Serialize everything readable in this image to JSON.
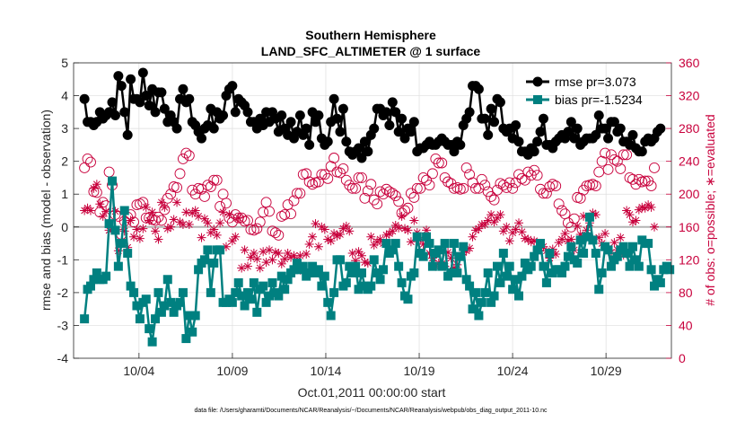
{
  "chart_data": {
    "type": "line",
    "title": "Southern Hemisphere",
    "subtitle": "LAND_SFC_ALTIMETER @ 1 surface",
    "xlabel": "Oct.01,2011 00:00:00 start",
    "ylabel": "rmse and bias (model - observation)",
    "ylabel_right": "# of obs: o=possible; ∗=evaluated",
    "footer": "data file: /Users/gharamti/Documents/NCAR/Reanalysis/~/Documents/NCAR/Reanalysis/webpub/obs_diag_output_2011-10.nc",
    "xlim": [
      0.5,
      32.5
    ],
    "ylim": [
      -4,
      5
    ],
    "ylim_right": [
      0,
      360
    ],
    "x_ticks": [
      4,
      9,
      14,
      19,
      24,
      29
    ],
    "x_tick_labels": [
      "10/04",
      "10/09",
      "10/14",
      "10/19",
      "10/24",
      "10/29"
    ],
    "y_ticks": [
      -4,
      -3,
      -2,
      -1,
      0,
      1,
      2,
      3,
      4,
      5
    ],
    "y_tick_labels": [
      "-4",
      "-3",
      "-2",
      "-1",
      "0",
      "1",
      "2",
      "3",
      "4",
      "5"
    ],
    "y_right_ticks": [
      0,
      40,
      80,
      120,
      160,
      200,
      240,
      280,
      320,
      360
    ],
    "y_right_tick_labels": [
      "0",
      "40",
      "80",
      "120",
      "160",
      "200",
      "240",
      "280",
      "320",
      "360"
    ],
    "legend_position": "top-right",
    "colors": {
      "rmse": "#000000",
      "bias": "#008080",
      "obs": "#c8003c",
      "zero_line": "#b4b4b4"
    },
    "series": [
      {
        "name": "rmse pr=3.073",
        "key": "rmse",
        "values": [
          3.9,
          3.2,
          3.2,
          3.1,
          3.2,
          3.5,
          3.3,
          3.4,
          3.5,
          3.8,
          3.4,
          4.6,
          4.3,
          3.5,
          2.8,
          4.5,
          3.9,
          3.9,
          3.8,
          4.7,
          4.0,
          3.7,
          4.2,
          3.5,
          4.1,
          4.1,
          3.6,
          3.2,
          3.4,
          3.2,
          3.0,
          3.9,
          4.2,
          3.8,
          3.9,
          3.2,
          3.1,
          2.9,
          2.7,
          3.0,
          3.1,
          3.6,
          3.0,
          3.5,
          3.3,
          3.4,
          4.0,
          4.2,
          4.3,
          3.5,
          3.9,
          3.8,
          3.7,
          3.5,
          3.2,
          3.2,
          3.0,
          3.3,
          3.1,
          3.5,
          3.2,
          3.5,
          3.3,
          2.9,
          3.4,
          3.0,
          2.8,
          3.2,
          2.7,
          2.9,
          3.4,
          2.8,
          3.0,
          2.5,
          3.5,
          3.2,
          3.4,
          2.7,
          2.5,
          2.6,
          3.2,
          3.9,
          3.3,
          2.9,
          3.6,
          2.6,
          2.3,
          2.2,
          2.3,
          2.4,
          2.1,
          2.6,
          2.3,
          2.8,
          3.0,
          3.6,
          3.6,
          3.4,
          3.5,
          3.1,
          3.8,
          3.5,
          2.9,
          3.3,
          2.7,
          3.0,
          2.9,
          3.2,
          2.3,
          2.4,
          2.4,
          2.5,
          2.6,
          2.5,
          2.5,
          2.6,
          2.7,
          2.6,
          2.5,
          2.5,
          2.3,
          2.6,
          2.5,
          3.1,
          3.3,
          3.5,
          4.3,
          4.3,
          4.2,
          3.3,
          3.3,
          2.8,
          3.6,
          3.2,
          3.9,
          3.8,
          3.0,
          2.9,
          3.0,
          2.7,
          3.1,
          2.6,
          2.3,
          2.3,
          2.2,
          2.4,
          2.3,
          2.6,
          2.9,
          3.3,
          2.5,
          2.5,
          2.4,
          2.6,
          2.7,
          2.8,
          2.7,
          2.9,
          3.2,
          2.7,
          3.0,
          2.5,
          2.6,
          2.7,
          2.7,
          2.7,
          2.8,
          3.4,
          3.0,
          3.0,
          2.7,
          3.2,
          3.2,
          2.9,
          3.0,
          2.6,
          2.6,
          2.5,
          2.8,
          2.4,
          2.3,
          2.3,
          2.6,
          2.7,
          2.6,
          2.7,
          2.9,
          3.0
        ]
      },
      {
        "name": "bias pr=-1.5234",
        "key": "bias",
        "values": [
          -2.8,
          -1.9,
          -1.8,
          -1.6,
          -1.4,
          -1.6,
          -1.6,
          -1.5,
          0.1,
          1.4,
          -0.1,
          -1.2,
          -0.5,
          0.5,
          -0.8,
          -1.8,
          -2.0,
          -2.4,
          -2.8,
          -2.3,
          -2.2,
          -3.1,
          -3.5,
          -2.8,
          -2.0,
          -2.6,
          -2.4,
          -1.6,
          -2.3,
          -2.6,
          -2.4,
          -2.3,
          -2.0,
          -3.4,
          -2.7,
          -3.2,
          -2.7,
          -1.3,
          -1.1,
          -1.0,
          -0.7,
          -2.0,
          -1.1,
          -0.7,
          -0.7,
          -2.3,
          -2.3,
          -2.2,
          -2.3,
          -2.0,
          -1.7,
          -2.1,
          -2.4,
          -2.0,
          -2.2,
          -1.7,
          -2.6,
          -1.9,
          -1.8,
          -2.3,
          -2.1,
          -1.7,
          -2.0,
          -2.1,
          -1.5,
          -1.9,
          -1.6,
          -1.4,
          -1.3,
          -1.1,
          -1.3,
          -1.2,
          -1.5,
          -1.4,
          -1.2,
          -1.4,
          -1.3,
          -1.8,
          -1.5,
          -2.3,
          -2.7,
          -2.0,
          -1.0,
          -1.0,
          -1.8,
          -1.7,
          -1.2,
          -1.4,
          -1.2,
          -1.9,
          -1.4,
          -1.8,
          -1.9,
          -1.8,
          -1.0,
          -1.4,
          -1.6,
          -1.3,
          -0.5,
          -0.8,
          -0.7,
          -0.5,
          -1.2,
          -1.7,
          -2.1,
          -2.2,
          -1.5,
          -1.4,
          -0.3,
          -0.8,
          -0.9,
          -0.3,
          -0.5,
          -1.2,
          -0.8,
          -0.7,
          -1.2,
          -0.5,
          -1.5,
          -1.4,
          -0.5,
          -1.4,
          -0.9,
          -0.6,
          -1.6,
          -1.8,
          -2.5,
          -2.0,
          -2.7,
          -2.3,
          -2.0,
          -1.4,
          -2.3,
          -2.1,
          -1.2,
          -1.7,
          -0.8,
          -1.5,
          -1.2,
          -1.9,
          -1.6,
          -2.1,
          -1.5,
          -1.1,
          -1.3,
          -1.2,
          -0.9,
          -0.7,
          -0.5,
          -1.2,
          -1.7,
          -0.8,
          -1.4,
          -1.3,
          -1.3,
          -1.4,
          -1.2,
          -0.9,
          -0.6,
          -1.0,
          -1.1,
          -0.4,
          -0.8,
          -0.3,
          0.3,
          -0.4,
          -0.8,
          -1.9,
          -1.4,
          -0.6,
          -0.7,
          -1.2,
          -1.0,
          -0.9,
          -0.7,
          -0.6,
          -0.8,
          -1.2,
          -0.6,
          -1.0,
          -1.2,
          -0.4,
          -0.5,
          -0.5,
          -1.3,
          -1.8,
          -1.6,
          -1.7,
          -1.3,
          -1.2,
          -1.3
        ]
      },
      {
        "name": "obs possible",
        "key": "obs_possible",
        "axis": "right",
        "values": [
          232,
          243,
          239,
          203,
          202,
          178,
          190,
          186,
          227,
          211,
          175,
          173,
          151,
          167,
          172,
          175,
          166,
          187,
          188,
          190,
          171,
          171,
          169,
          168,
          172,
          168,
          181,
          195,
          200,
          209,
          208,
          225,
          243,
          250,
          247,
          205,
          200,
          207,
          206,
          197,
          211,
          209,
          217,
          217,
          185,
          200,
          189,
          171,
          166,
          175,
          171,
          171,
          167,
          168,
          157,
          156,
          158,
          166,
          178,
          190,
          179,
          155,
          153,
          150,
          173,
          175,
          187,
          176,
          192,
          201,
          201,
          224,
          225,
          215,
          212,
          214,
          215,
          224,
          224,
          219,
          234,
          244,
          227,
          226,
          231,
          217,
          211,
          207,
          207,
          220,
          220,
          195,
          204,
          212,
          193,
          188,
          203,
          200,
          206,
          203,
          201,
          198,
          191,
          177,
          180,
          183,
          201,
          196,
          207,
          207,
          220,
          217,
          211,
          225,
          243,
          238,
          238,
          220,
          215,
          213,
          207,
          208,
          206,
          207,
          232,
          224,
          214,
          207,
          207,
          218,
          211,
          203,
          197,
          193,
          205,
          213,
          211,
          208,
          214,
          207,
          214,
          224,
          219,
          217,
          227,
          223,
          229,
          223,
          206,
          201,
          201,
          209,
          212,
          210,
          188,
          180,
          176,
          165,
          160,
          170,
          196,
          195,
          205,
          210,
          211,
          212,
          210,
          227,
          240,
          250,
          230,
          248,
          242,
          240,
          231,
          248,
          248,
          220,
          218,
          212,
          218,
          215,
          216,
          216,
          210,
          232
        ]
      },
      {
        "name": "obs evaluated",
        "key": "obs_evaluated",
        "axis": "right",
        "values": [
          180,
          183,
          180,
          207,
          212,
          188,
          173,
          179,
          156,
          157,
          179,
          131,
          140,
          155,
          135,
          168,
          148,
          157,
          146,
          158,
          184,
          168,
          178,
          155,
          145,
          190,
          184,
          158,
          160,
          169,
          190,
          166,
          163,
          178,
          163,
          177,
          180,
          173,
          147,
          170,
          165,
          153,
          157,
          150,
          165,
          178,
          136,
          175,
          143,
          148,
          171,
          110,
          132,
          112,
          123,
          128,
          121,
          110,
          130,
          117,
          132,
          120,
          129,
          128,
          115,
          121,
          128,
          123,
          125,
          119,
          125,
          106,
          127,
          139,
          148,
          164,
          136,
          160,
          157,
          145,
          143,
          152,
          149,
          151,
          158,
          161,
          155,
          128,
          119,
          130,
          125,
          117,
          116,
          148,
          138,
          142,
          145,
          140,
          150,
          152,
          155,
          162,
          159,
          173,
          158,
          156,
          142,
          168,
          153,
          145,
          139,
          156,
          128,
          122,
          112,
          116,
          115,
          112,
          129,
          122,
          110,
          114,
          124,
          129,
          131,
          134,
          148,
          156,
          158,
          163,
          163,
          168,
          175,
          166,
          171,
          175,
          155,
          160,
          143,
          153,
          157,
          165,
          154,
          146,
          145,
          142,
          143,
          132,
          134,
          136,
          131,
          122,
          133,
          127,
          141,
          145,
          152,
          143,
          145,
          132,
          161,
          151,
          173,
          156,
          165,
          177,
          175,
          147,
          140,
          152,
          132,
          129,
          141,
          132,
          147,
          126,
          180,
          175,
          166,
          168,
          181,
          184,
          183,
          187,
          184,
          160
        ]
      }
    ]
  }
}
